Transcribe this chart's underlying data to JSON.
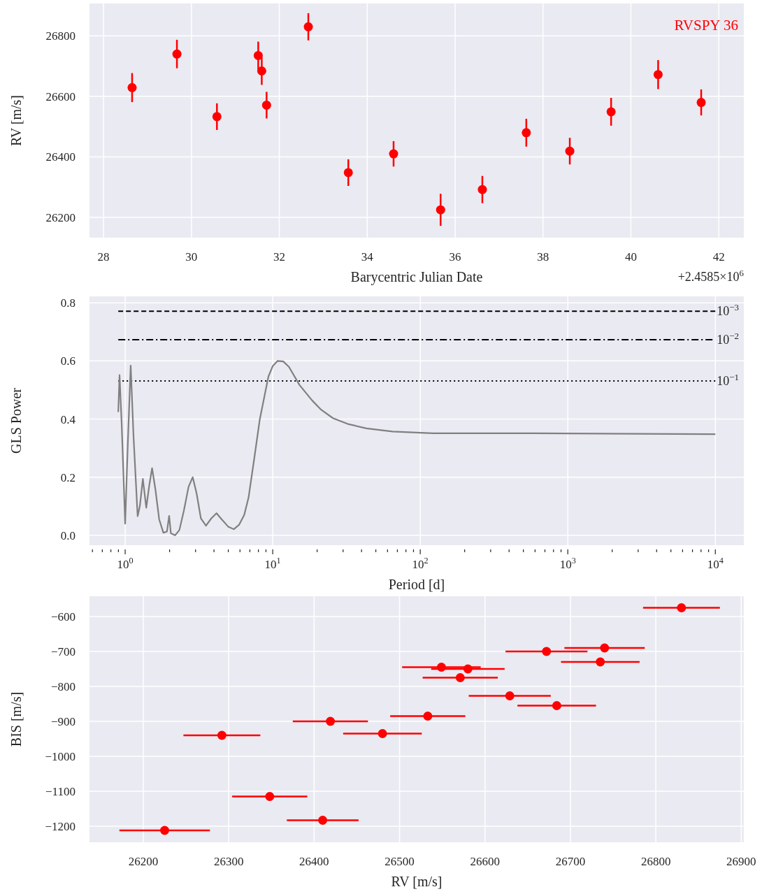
{
  "chart_data": [
    {
      "type": "scatter",
      "title": "RVSPY 36",
      "xlabel": "Barycentric Julian Date",
      "ylabel": "RV [m/s]",
      "annotations": [
        "+2.4585×10$^{6}$"
      ],
      "grid": true,
      "marker": "circle",
      "xlim": [
        27.68,
        42.57
      ],
      "ylim": [
        26133,
        26907
      ],
      "xticks": [
        28,
        30,
        32,
        34,
        36,
        38,
        40,
        42
      ],
      "yticks": [
        26200,
        26400,
        26600,
        26800
      ],
      "series": [
        {
          "color": "#ff0000",
          "x": [
            28.65,
            29.67,
            30.58,
            31.52,
            31.6,
            31.71,
            32.66,
            33.57,
            34.6,
            35.67,
            36.62,
            37.62,
            38.61,
            39.55,
            40.62,
            41.6
          ],
          "values": [
            26629,
            26740,
            26533,
            26735,
            26684,
            26571,
            26830,
            26348,
            26410,
            26225,
            26292,
            26480,
            26419,
            26549,
            26672,
            26580
          ],
          "errors": [
            48,
            47,
            44,
            46,
            46,
            44,
            45,
            44,
            42,
            53,
            45,
            46,
            44,
            46,
            48,
            43
          ]
        }
      ]
    },
    {
      "type": "line",
      "xlabel": "Period [d]",
      "ylabel": "GLS Power",
      "log": "x",
      "grid": true,
      "xlim": [
        0.573,
        15600
      ],
      "ylim": [
        -0.034,
        0.822
      ],
      "xticks": [
        {
          "value": 0.6,
          "label": null
        },
        {
          "value": 0.7,
          "label": null
        },
        {
          "value": 0.8,
          "label": null
        },
        {
          "value": 0.9,
          "label": null
        },
        {
          "value": 1,
          "label": "10$^{0}$"
        },
        {
          "value": 2,
          "label": null
        },
        {
          "value": 3,
          "label": null
        },
        {
          "value": 4,
          "label": null
        },
        {
          "value": 5,
          "label": null
        },
        {
          "value": 6,
          "label": null
        },
        {
          "value": 7,
          "label": null
        },
        {
          "value": 8,
          "label": null
        },
        {
          "value": 9,
          "label": null
        },
        {
          "value": 10,
          "label": "10$^{1}$"
        },
        {
          "value": 20,
          "label": null
        },
        {
          "value": 30,
          "label": null
        },
        {
          "value": 40,
          "label": null
        },
        {
          "value": 50,
          "label": null
        },
        {
          "value": 60,
          "label": null
        },
        {
          "value": 70,
          "label": null
        },
        {
          "value": 80,
          "label": null
        },
        {
          "value": 90,
          "label": null
        },
        {
          "value": 100,
          "label": "10$^{2}$"
        },
        {
          "value": 200,
          "label": null
        },
        {
          "value": 300,
          "label": null
        },
        {
          "value": 400,
          "label": null
        },
        {
          "value": 500,
          "label": null
        },
        {
          "value": 600,
          "label": null
        },
        {
          "value": 700,
          "label": null
        },
        {
          "value": 800,
          "label": null
        },
        {
          "value": 900,
          "label": null
        },
        {
          "value": 1000,
          "label": "10$^{3}$"
        },
        {
          "value": 2000,
          "label": null
        },
        {
          "value": 3000,
          "label": null
        },
        {
          "value": 4000,
          "label": null
        },
        {
          "value": 5000,
          "label": null
        },
        {
          "value": 6000,
          "label": null
        },
        {
          "value": 7000,
          "label": null
        },
        {
          "value": 8000,
          "label": null
        },
        {
          "value": 9000,
          "label": null
        },
        {
          "value": 10000,
          "label": "10$^{4}$"
        }
      ],
      "yticks": [
        {
          "value": 0,
          "label": "0.0"
        },
        0.2,
        0.4,
        0.6,
        0.8
      ],
      "ref_lines": [
        {
          "axis": "y",
          "value": 0.771,
          "label": "10$^{−3}$",
          "color": "#000000",
          "line_style": "dashed"
        },
        {
          "axis": "y",
          "value": 0.673,
          "label": "10$^{−2}$",
          "color": "#000000",
          "line_style": "dashdot"
        },
        {
          "axis": "y",
          "value": 0.531,
          "label": "10$^{−1}$",
          "color": "#000000",
          "line_style": "dotted"
        }
      ],
      "series": [
        {
          "color": "#808080",
          "x": [
            0.898,
            0.916,
            0.947,
            1.0,
            1.041,
            1.09,
            1.14,
            1.215,
            1.257,
            1.318,
            1.39,
            1.459,
            1.522,
            1.602,
            1.7,
            1.815,
            1.92,
            1.987,
            2.04,
            2.18,
            2.33,
            2.5,
            2.69,
            2.87,
            3.05,
            3.26,
            3.53,
            3.83,
            4.16,
            4.51,
            4.99,
            5.45,
            5.91,
            6.41,
            6.86,
            7.49,
            8.17,
            8.74,
            9.35,
            10.0,
            10.8,
            11.8,
            12.9,
            15.2,
            18.5,
            21.3,
            25.6,
            32.3,
            43.2,
            64.9,
            122,
            440,
            1690,
            10000
          ],
          "values": [
            0.424,
            0.551,
            0.383,
            0.04,
            0.308,
            0.584,
            0.338,
            0.066,
            0.1,
            0.194,
            0.095,
            0.174,
            0.231,
            0.159,
            0.055,
            0.009,
            0.013,
            0.067,
            0.007,
            0.0,
            0.018,
            0.085,
            0.167,
            0.2,
            0.144,
            0.058,
            0.033,
            0.058,
            0.076,
            0.055,
            0.03,
            0.021,
            0.036,
            0.07,
            0.13,
            0.263,
            0.398,
            0.472,
            0.546,
            0.582,
            0.6,
            0.598,
            0.579,
            0.517,
            0.464,
            0.432,
            0.403,
            0.383,
            0.368,
            0.357,
            0.351,
            0.351,
            0.35,
            0.348
          ]
        }
      ]
    },
    {
      "type": "scatter",
      "xlabel": "RV [m/s]",
      "ylabel": "BIS [m/s]",
      "grid": true,
      "marker": "circle",
      "xlim": [
        26137,
        26903
      ],
      "ylim": [
        -1246,
        -542
      ],
      "xticks": [
        26200,
        26300,
        26400,
        26500,
        26600,
        26700,
        26800,
        26900
      ],
      "yticks": [
        {
          "value": -600,
          "label": "−600"
        },
        {
          "value": -700,
          "label": "−700"
        },
        {
          "value": -800,
          "label": "−800"
        },
        {
          "value": -900,
          "label": "−900"
        },
        {
          "value": -1000,
          "label": "−1000"
        },
        {
          "value": -1100,
          "label": "−1100"
        },
        {
          "value": -1200,
          "label": "−1200"
        }
      ],
      "series": [
        {
          "color": "#ff0000",
          "x": [
            26629,
            26740,
            26533,
            26735,
            26684,
            26571,
            26830,
            26348,
            26410,
            26225,
            26292,
            26480,
            26419,
            26549,
            26672,
            26580
          ],
          "values": [
            -827,
            -690,
            -885,
            -730,
            -855,
            -775,
            -575,
            -1115,
            -1183,
            -1212,
            -940,
            -935,
            -900,
            -745,
            -700,
            -750
          ],
          "xerrors": [
            48,
            47,
            44,
            46,
            46,
            44,
            45,
            44,
            42,
            53,
            45,
            46,
            44,
            46,
            48,
            43
          ]
        }
      ]
    }
  ]
}
